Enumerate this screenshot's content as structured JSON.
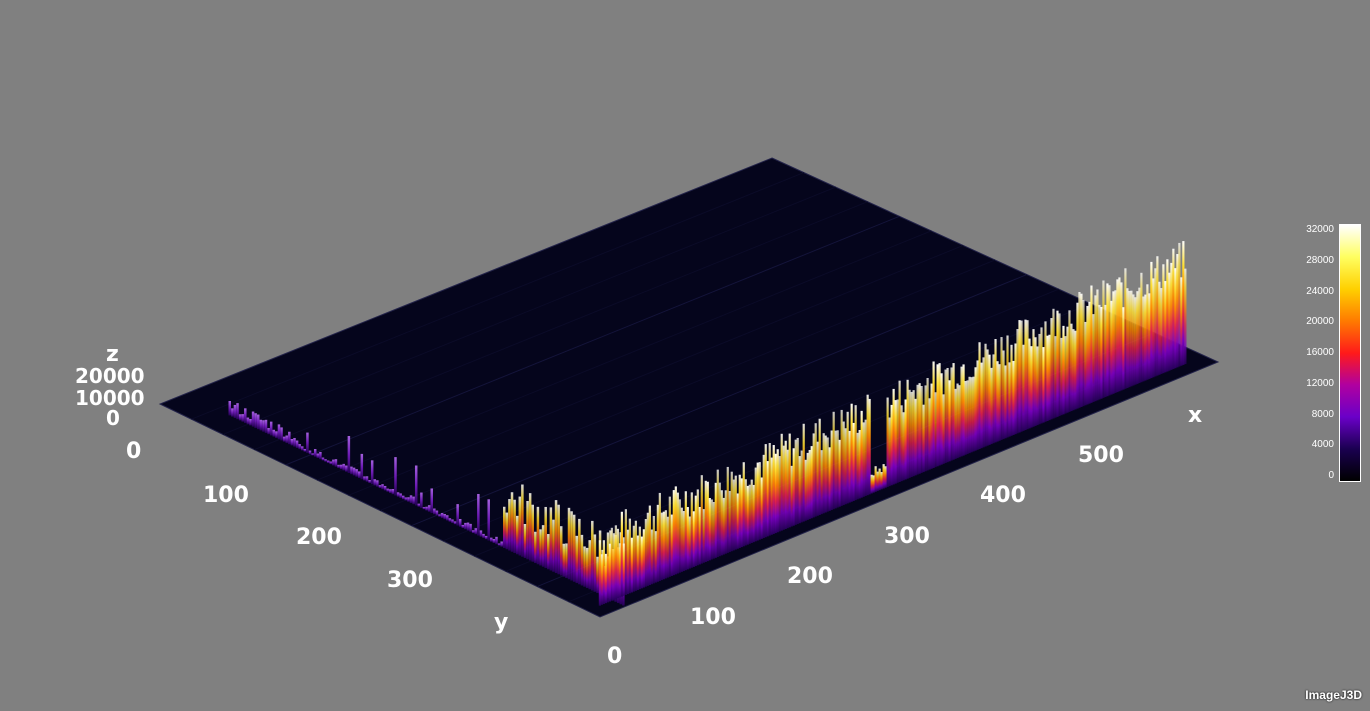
{
  "axes": {
    "x": {
      "label": "x",
      "ticks": [
        "0",
        "100",
        "200",
        "300",
        "400",
        "500"
      ]
    },
    "y": {
      "label": "y",
      "ticks": [
        "0",
        "100",
        "200",
        "300"
      ]
    },
    "z": {
      "label": "z",
      "ticks": [
        "20000",
        "10000",
        "0"
      ]
    }
  },
  "colorbar": {
    "ticks": [
      "32000",
      "28000",
      "24000",
      "20000",
      "16000",
      "12000",
      "8000",
      "4000",
      "0"
    ],
    "colormap": "fire",
    "colors": [
      "#000000",
      "#1a0050",
      "#6a00c8",
      "#b000a0",
      "#ff1a1a",
      "#ff7a00",
      "#ffd000",
      "#ffff60",
      "#ffffff"
    ]
  },
  "surface": {
    "plane_color": "#07071f",
    "edge_color": "#2a2a55"
  },
  "brand": "ImageJ3D"
}
